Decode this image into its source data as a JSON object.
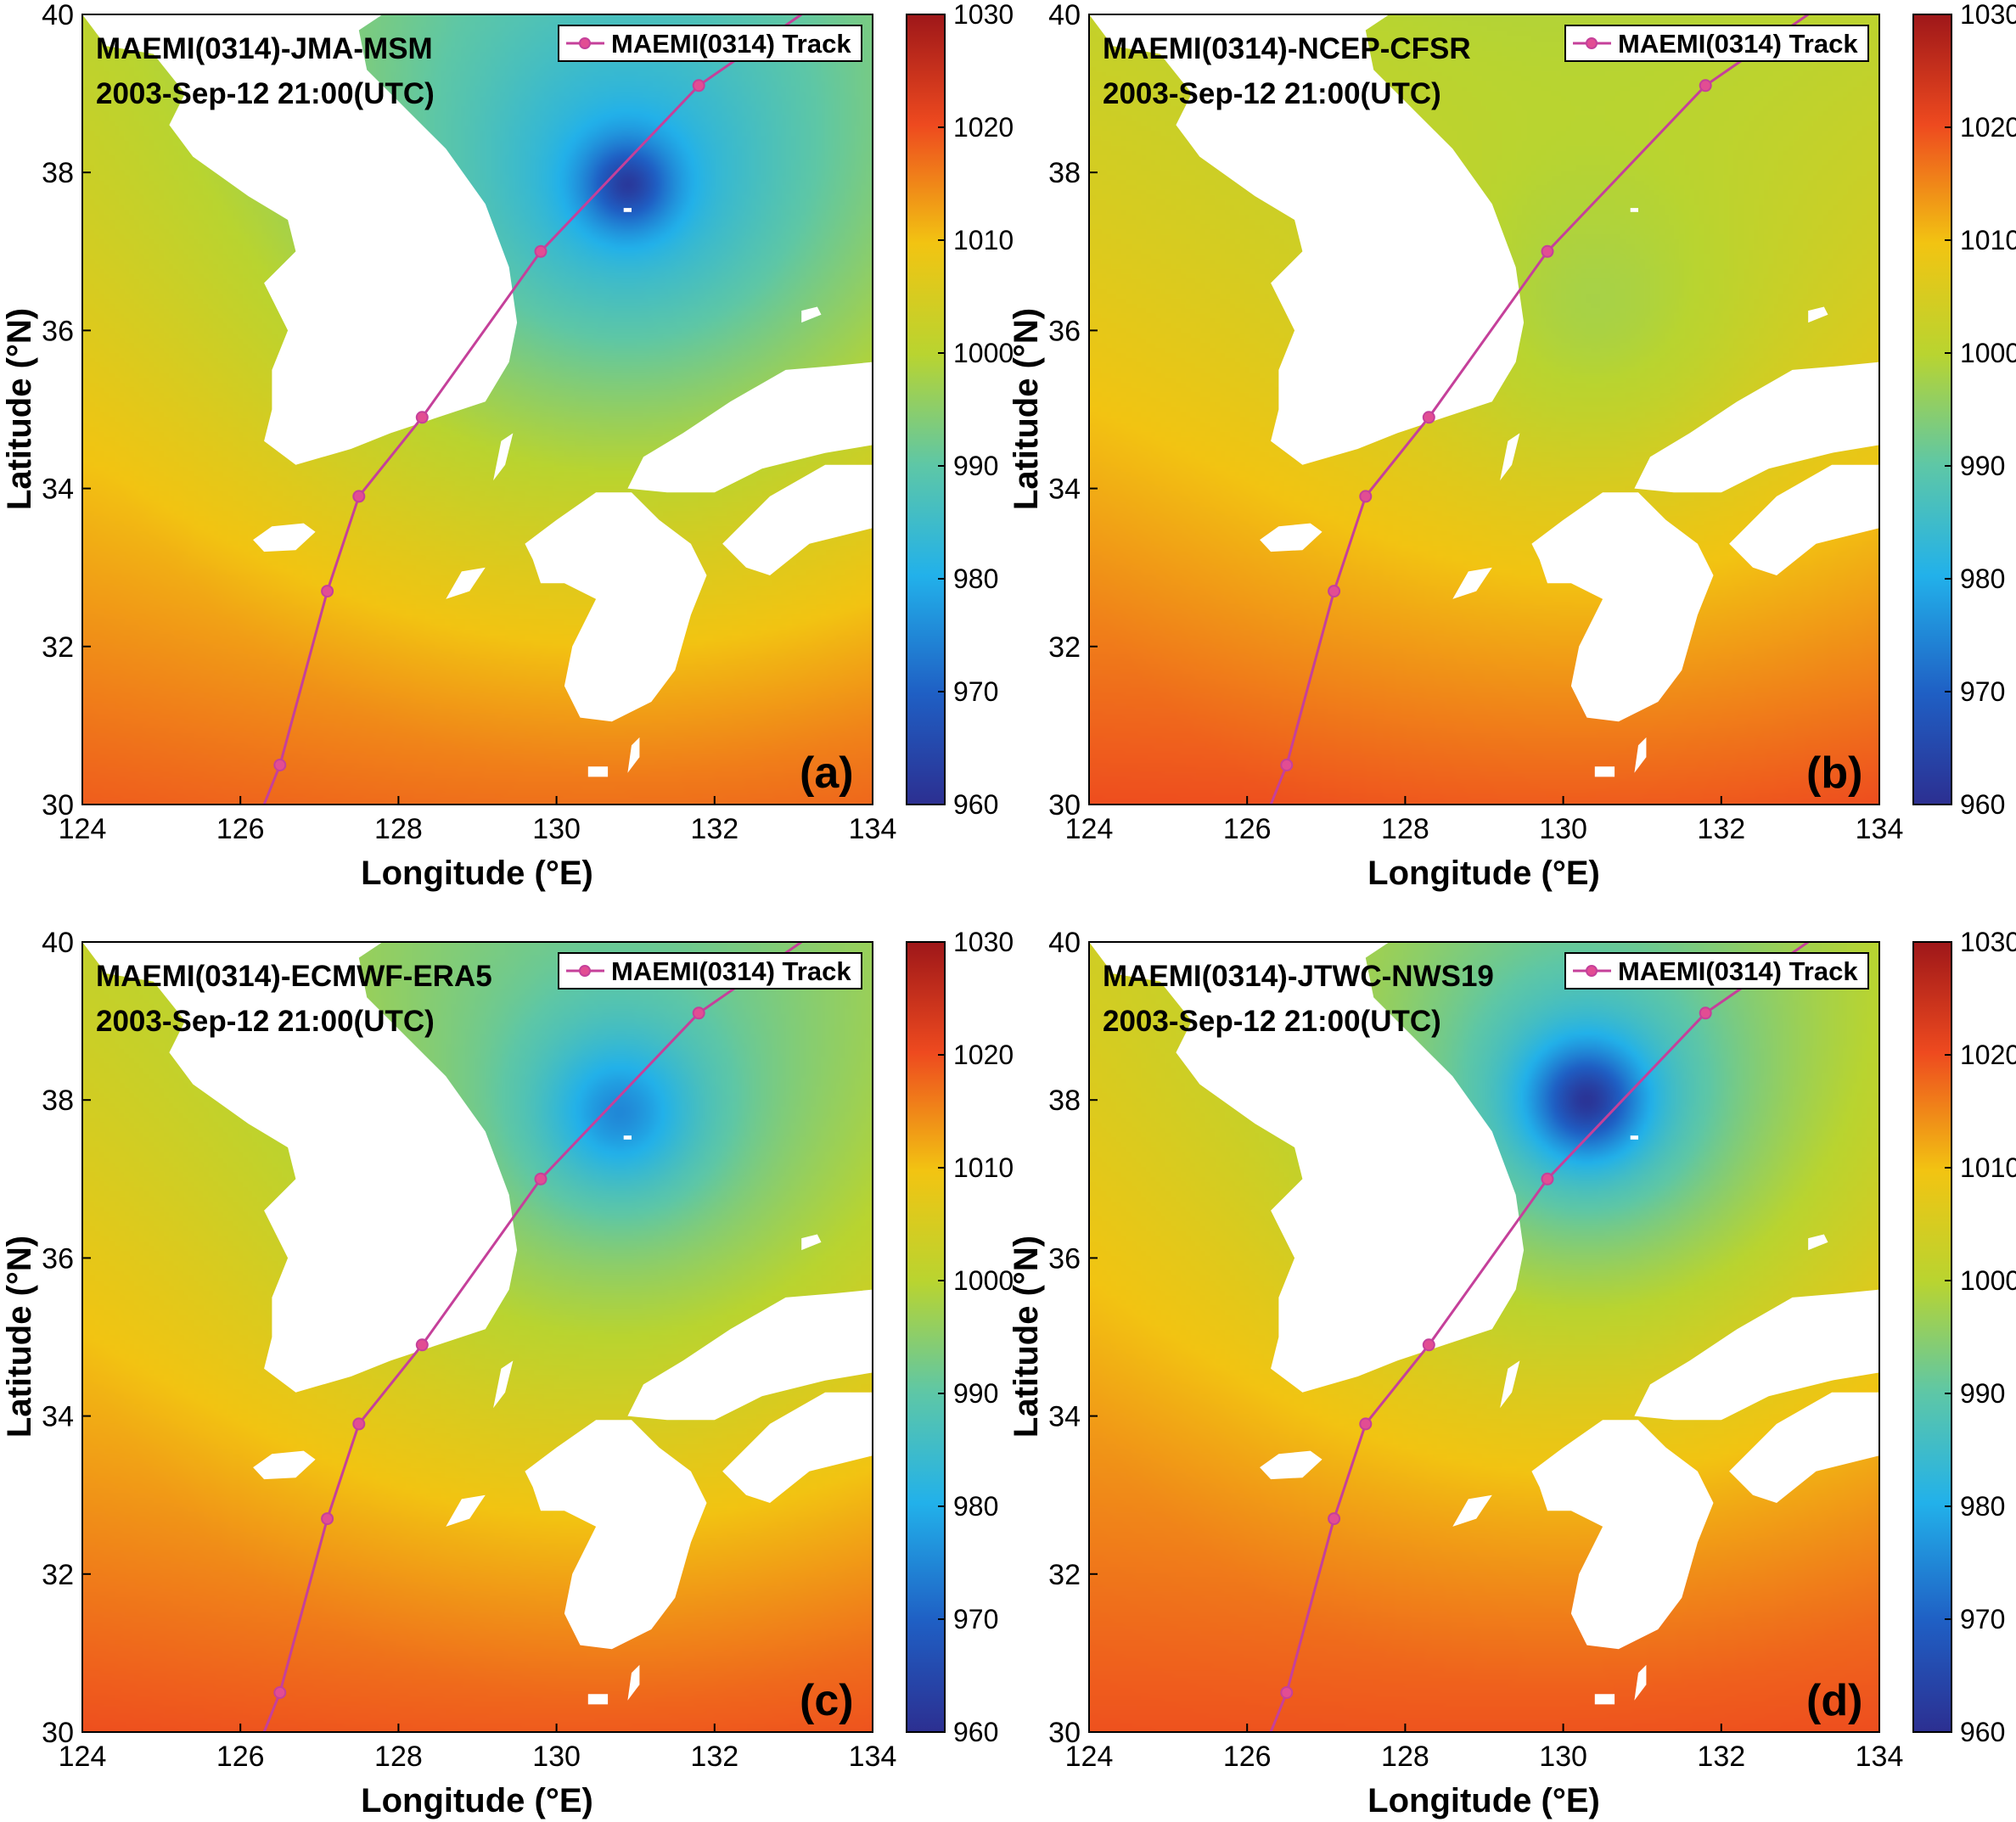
{
  "colorbar": {
    "min": 960,
    "max": 1030,
    "ticks": [
      960,
      970,
      980,
      990,
      1000,
      1010,
      1020,
      1030
    ],
    "colormap": "jet"
  },
  "axes": {
    "xlabel": "Longitude (°E)",
    "ylabel": "Latitude (°N)",
    "xlim": [
      124,
      134
    ],
    "ylim": [
      30,
      40
    ],
    "xticks": [
      124,
      126,
      128,
      130,
      132,
      134
    ],
    "yticks": [
      30,
      32,
      34,
      36,
      38,
      40
    ]
  },
  "legend_label": "MAEMI(0314) Track",
  "timestamp": "2003-Sep-12 21:00(UTC)",
  "track": [
    {
      "lon": 126.3,
      "lat": 30.0
    },
    {
      "lon": 126.5,
      "lat": 30.5
    },
    {
      "lon": 127.1,
      "lat": 32.7
    },
    {
      "lon": 127.5,
      "lat": 33.9
    },
    {
      "lon": 128.3,
      "lat": 34.9
    },
    {
      "lon": 129.8,
      "lat": 37.0
    },
    {
      "lon": 131.8,
      "lat": 39.1
    },
    {
      "lon": 133.1,
      "lat": 40.0
    }
  ],
  "track_markers": [
    1,
    2,
    3,
    4,
    5,
    6
  ],
  "colors": {
    "track": "#c5409a",
    "marker": "#e24d93",
    "land": "#ffffff"
  },
  "panels": [
    {
      "id": "a",
      "title": "MAEMI(0314)-JMA-MSM",
      "letter": "(a)",
      "field": {
        "center_lon": 130.9,
        "center_lat": 37.85,
        "min_p": 962,
        "core_radius": 0.5,
        "decay": 3.6,
        "env_base": 1003,
        "env_gradient": 2.2
      }
    },
    {
      "id": "b",
      "title": "MAEMI(0314)-NCEP-CFSR",
      "letter": "(b)",
      "field": {
        "center_lon": 130.4,
        "center_lat": 36.4,
        "min_p": 998,
        "core_radius": 1.5,
        "decay": 3.0,
        "env_base": 1004,
        "env_gradient": 2.5
      }
    },
    {
      "id": "c",
      "title": "MAEMI(0314)-ECMWF-ERA5",
      "letter": "(c)",
      "field": {
        "center_lon": 130.8,
        "center_lat": 37.85,
        "min_p": 975,
        "core_radius": 0.8,
        "decay": 3.4,
        "env_base": 1003,
        "env_gradient": 2.3
      }
    },
    {
      "id": "d",
      "title": "MAEMI(0314)-JTWC-NWS19",
      "letter": "(d)",
      "field": {
        "center_lon": 130.3,
        "center_lat": 38.0,
        "min_p": 961,
        "core_radius": 0.6,
        "decay": 2.2,
        "env_base": 1004,
        "env_gradient": 1.9
      }
    }
  ]
}
